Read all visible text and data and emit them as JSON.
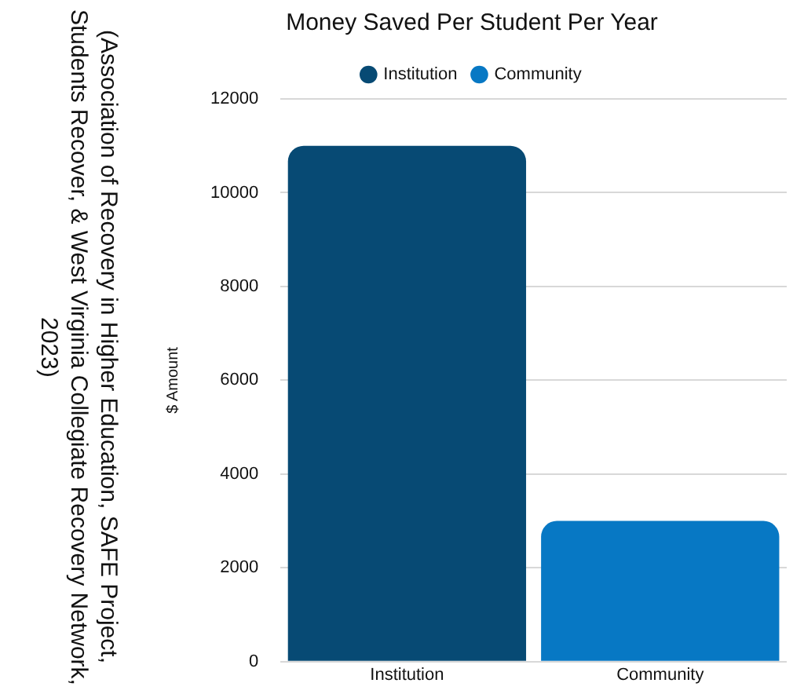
{
  "chart_data": {
    "type": "bar",
    "title": "Money Saved Per Student Per Year",
    "categories": [
      "Institution",
      "Community"
    ],
    "series": [
      {
        "name": "Institution",
        "color": "#074a74",
        "values": [
          11000,
          null
        ]
      },
      {
        "name": "Community",
        "color": "#0778c4",
        "values": [
          null,
          3000
        ]
      }
    ],
    "ylabel": "$ Amount",
    "ylim": [
      0,
      12000
    ],
    "yticks": [
      0,
      2000,
      4000,
      6000,
      8000,
      10000,
      12000
    ],
    "grid": "y",
    "legend": "top",
    "annotations": [
      "(Association of Recovery in Higher Education, SAFE Project, Students Recover, & West Virginia Collegiate Recovery Network, 2023)"
    ]
  }
}
